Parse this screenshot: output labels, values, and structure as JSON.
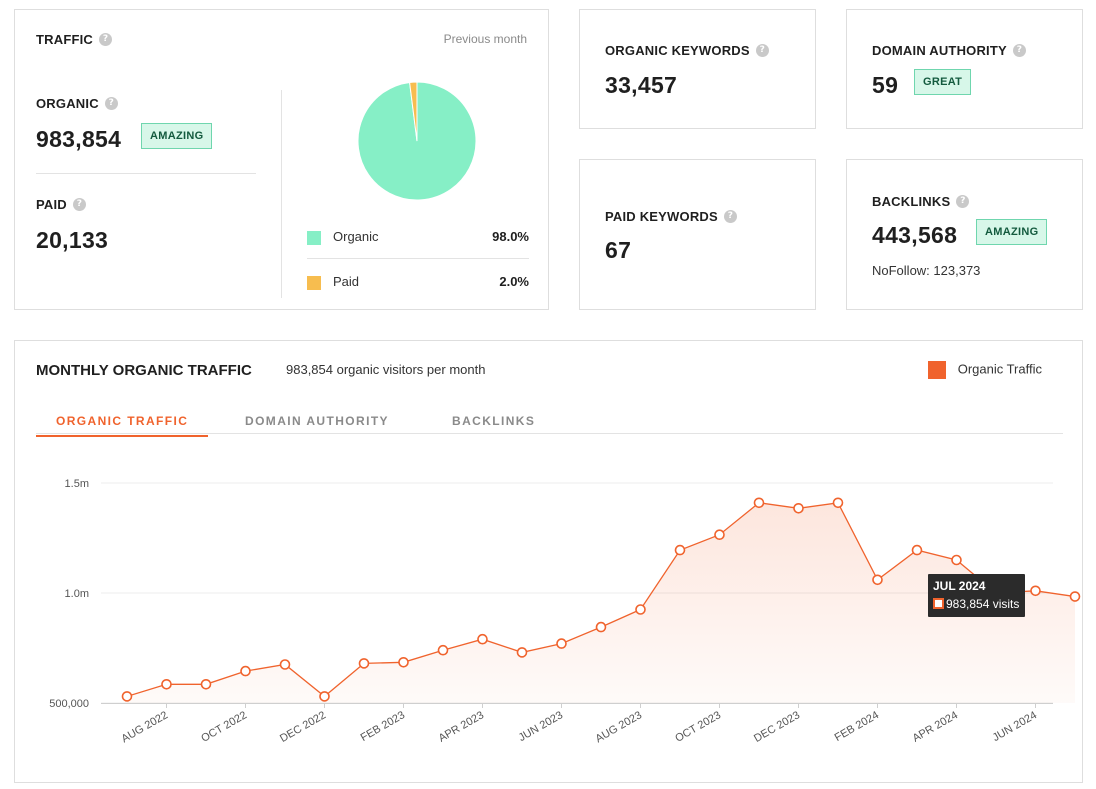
{
  "traffic": {
    "title": "TRAFFIC",
    "period": "Previous month",
    "organic_label": "ORGANIC",
    "organic_value": "983,854",
    "organic_badge": "AMAZING",
    "paid_label": "PAID",
    "paid_value": "20,133",
    "legend": [
      {
        "label": "Organic",
        "pct": "98.0%",
        "color": "#86efc6"
      },
      {
        "label": "Paid",
        "pct": "2.0%",
        "color": "#f7bd4f"
      }
    ]
  },
  "organic_keywords": {
    "label": "ORGANIC KEYWORDS",
    "value": "33,457"
  },
  "domain_authority": {
    "label": "DOMAIN AUTHORITY",
    "value": "59",
    "badge": "GREAT"
  },
  "paid_keywords": {
    "label": "PAID KEYWORDS",
    "value": "67"
  },
  "backlinks": {
    "label": "BACKLINKS",
    "value": "443,568",
    "badge": "AMAZING",
    "nofollow": "NoFollow: 123,373"
  },
  "monthly": {
    "title": "MONTHLY ORGANIC TRAFFIC",
    "subtitle": "983,854 organic visitors per month",
    "legend_label": "Organic Traffic",
    "tabs": [
      "ORGANIC TRAFFIC",
      "DOMAIN AUTHORITY",
      "BACKLINKS"
    ],
    "tooltip": {
      "month": "JUL 2024",
      "value": "983,854 visits"
    }
  },
  "colors": {
    "accent": "#f0632d",
    "badge_bg": "#d7f7e9",
    "organic": "#86efc6",
    "paid": "#f7bd4f"
  },
  "chart_data": [
    {
      "type": "pie",
      "categories": [
        "Organic",
        "Paid"
      ],
      "values": [
        98.0,
        2.0
      ]
    },
    {
      "type": "area",
      "x": [
        "JUL 2022",
        "AUG 2022",
        "SEP 2022",
        "OCT 2022",
        "NOV 2022",
        "DEC 2022",
        "JAN 2023",
        "FEB 2023",
        "MAR 2023",
        "APR 2023",
        "MAY 2023",
        "JUN 2023",
        "JUL 2023",
        "AUG 2023",
        "SEP 2023",
        "OCT 2023",
        "NOV 2023",
        "DEC 2023",
        "JAN 2024",
        "FEB 2024",
        "MAR 2024",
        "APR 2024",
        "MAY 2024",
        "JUN 2024",
        "JUL 2024"
      ],
      "series": [
        {
          "name": "Organic Traffic",
          "values": [
            530000,
            585000,
            585000,
            645000,
            675000,
            530000,
            680000,
            685000,
            740000,
            790000,
            730000,
            770000,
            845000,
            925000,
            1195000,
            1265000,
            1410000,
            1385000,
            1410000,
            1060000,
            1195000,
            1150000,
            1000000,
            1010000,
            983854
          ]
        }
      ],
      "xticks": [
        "AUG 2022",
        "OCT 2022",
        "DEC 2022",
        "FEB 2023",
        "APR 2023",
        "JUN 2023",
        "AUG 2023",
        "OCT 2023",
        "DEC 2023",
        "FEB 2024",
        "APR 2024",
        "JUN 2024"
      ],
      "yticks": [
        "500,000",
        "1.0m",
        "1.5m"
      ],
      "ylim": [
        500000,
        1500000
      ],
      "grid": true
    }
  ]
}
